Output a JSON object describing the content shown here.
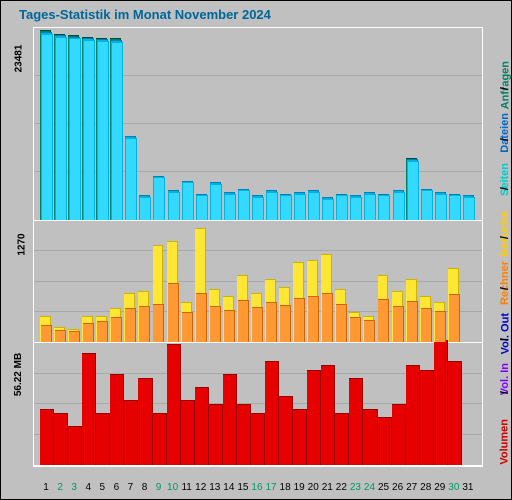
{
  "title": "Tages-Statistik im Monat November 2024",
  "title_color": "#006699",
  "background": "#c0c0c0",
  "days": [
    1,
    2,
    3,
    4,
    5,
    6,
    7,
    8,
    9,
    10,
    11,
    12,
    13,
    14,
    15,
    16,
    17,
    18,
    19,
    20,
    21,
    22,
    23,
    24,
    25,
    26,
    27,
    28,
    29,
    30,
    31
  ],
  "legend": [
    {
      "label": "Anfragen",
      "color": "#008066"
    },
    {
      "label": "Dateien",
      "color": "#0066cc"
    },
    {
      "label": "Seiten",
      "color": "#00cccc"
    },
    {
      "label": "Besuche",
      "color": "#ffcc00"
    },
    {
      "label": "Rechner",
      "color": "#ff8000"
    },
    {
      "label": "Vol. Out",
      "color": "#0000cc"
    },
    {
      "label": "Vol. In",
      "color": "#8000ff"
    },
    {
      "label": "Volumen",
      "color": "#cc0000"
    }
  ],
  "panel1": {
    "ylabel": "23481",
    "ylim": 23481,
    "grid_lines": [
      0.25,
      0.5,
      0.75
    ],
    "series": [
      {
        "color": "#008066",
        "stroke": "#004d3d",
        "values": [
          23200,
          22800,
          22600,
          22400,
          22300,
          22200,
          0,
          0,
          0,
          0,
          0,
          0,
          0,
          0,
          0,
          0,
          0,
          0,
          0,
          0,
          0,
          0,
          0,
          0,
          0,
          0,
          7600,
          0,
          0,
          0,
          0
        ]
      },
      {
        "color": "#00b3e6",
        "stroke": "#0080b3",
        "values": [
          23000,
          22600,
          22400,
          22200,
          22100,
          22000,
          10200,
          3000,
          5400,
          3600,
          4800,
          3200,
          4600,
          3400,
          3800,
          3000,
          3600,
          3200,
          3400,
          3600,
          2800,
          3200,
          3000,
          3400,
          3200,
          3600,
          7400,
          3800,
          3400,
          3200,
          3000
        ]
      },
      {
        "color": "#33d9ff",
        "stroke": "#00b3e6",
        "values": [
          22800,
          22400,
          22200,
          22000,
          21900,
          21800,
          10000,
          2800,
          5200,
          3400,
          4600,
          3000,
          4400,
          3200,
          3600,
          2800,
          3400,
          3000,
          3200,
          3400,
          2600,
          3000,
          2800,
          3200,
          3000,
          3400,
          7200,
          3600,
          3200,
          3000,
          2800
        ]
      }
    ]
  },
  "panel2": {
    "ylabel": "1270",
    "ylim": 1270,
    "grid_lines": [
      0.25,
      0.5,
      0.75
    ],
    "series": [
      {
        "color": "#ffe633",
        "stroke": "#ccb300",
        "values": [
          280,
          160,
          140,
          280,
          280,
          360,
          520,
          540,
          1020,
          1060,
          420,
          1190,
          560,
          480,
          700,
          520,
          660,
          580,
          840,
          860,
          920,
          560,
          320,
          280,
          700,
          540,
          660,
          480,
          420,
          780,
          0
        ]
      },
      {
        "color": "#ff9933",
        "stroke": "#cc6600",
        "values": [
          180,
          130,
          120,
          200,
          220,
          260,
          360,
          380,
          400,
          620,
          320,
          520,
          380,
          340,
          440,
          370,
          420,
          390,
          460,
          480,
          520,
          400,
          260,
          230,
          450,
          380,
          430,
          360,
          330,
          500,
          0
        ]
      }
    ]
  },
  "panel3": {
    "ylabel": "56.22 MB",
    "ylim": 56.22,
    "grid_lines": [
      0.25,
      0.5,
      0.75
    ],
    "series": [
      {
        "color": "#e60000",
        "stroke": "#990000",
        "values": [
          26,
          24,
          18,
          52,
          24,
          42,
          30,
          40,
          24,
          56,
          30,
          36,
          28,
          42,
          28,
          24,
          48,
          32,
          26,
          44,
          46,
          24,
          40,
          26,
          22,
          28,
          46,
          44,
          58,
          48,
          0
        ]
      }
    ]
  },
  "xaxis": {
    "weekend_color": "#009966",
    "normal_color": "#000"
  }
}
